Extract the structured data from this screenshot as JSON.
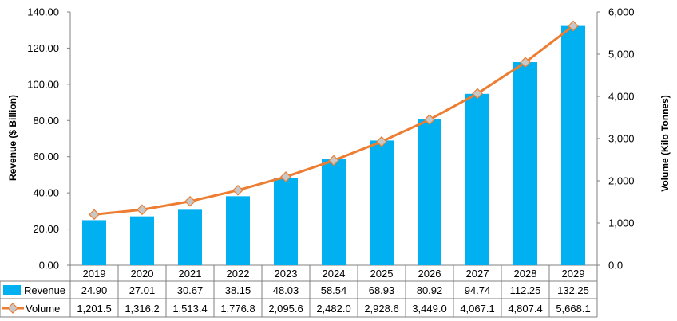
{
  "chart_data": {
    "type": "bar",
    "categories": [
      "2019",
      "2020",
      "2021",
      "2022",
      "2023",
      "2024",
      "2025",
      "2026",
      "2027",
      "2028",
      "2029"
    ],
    "series": [
      {
        "name": "Revenue",
        "kind": "bar",
        "axis": "left",
        "color": "#00B0F0",
        "values": [
          24.9,
          27.01,
          30.67,
          38.15,
          48.03,
          58.54,
          68.93,
          80.92,
          94.74,
          112.25,
          132.25
        ],
        "labels": [
          "24.90",
          "27.01",
          "30.67",
          "38.15",
          "48.03",
          "58.54",
          "68.93",
          "80.92",
          "94.74",
          "112.25",
          "132.25"
        ]
      },
      {
        "name": "Volume",
        "kind": "line",
        "axis": "right",
        "color": "#ED7D31",
        "marker_color": "#C8C8C8",
        "values": [
          1201.5,
          1316.2,
          1513.4,
          1776.8,
          2095.6,
          2482.0,
          2928.6,
          3449.0,
          4067.1,
          4807.4,
          5668.1
        ],
        "labels": [
          "1,201.5",
          "1,316.2",
          "1,513.4",
          "1,776.8",
          "2,095.6",
          "2,482.0",
          "2,928.6",
          "3,449.0",
          "4,067.1",
          "4,807.4",
          "5,668.1"
        ]
      }
    ],
    "ylabel": "Revenue ($ Billion)",
    "y2label": "Volume (Kilo Tonnes)",
    "ylim": [
      0,
      140
    ],
    "y2lim": [
      0,
      6000
    ],
    "yticks": [
      "0.00",
      "20.00",
      "40.00",
      "60.00",
      "80.00",
      "100.00",
      "120.00",
      "140.00"
    ],
    "y2ticks": [
      "0.0",
      "1,000",
      "2,000",
      "3,000",
      "4,000",
      "5,000",
      "6,000"
    ],
    "grid": false,
    "legend": "data-table-below"
  }
}
